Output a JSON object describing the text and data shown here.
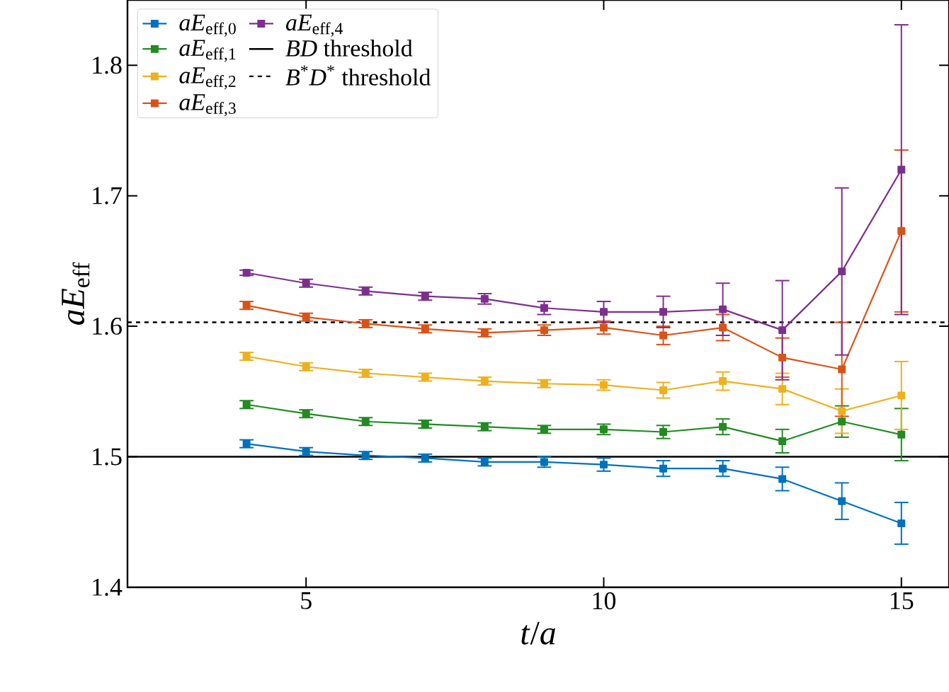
{
  "chart_data": {
    "type": "line",
    "xlabel": "*t*/*a*",
    "ylabel": "*aE*$_{eff}$",
    "xlim": [
      2,
      15.8
    ],
    "ylim": [
      1.4,
      1.85
    ],
    "xticks": [
      5,
      10,
      15
    ],
    "yticks": [
      1.4,
      1.5,
      1.6,
      1.7,
      1.8
    ],
    "grid": false,
    "legend": "top left",
    "marker": "square",
    "line_style": "solid",
    "x": [
      4,
      5,
      6,
      7,
      8,
      9,
      10,
      11,
      12,
      13,
      14,
      15
    ],
    "series": [
      {
        "name": "*aE*$_{eff,0}$",
        "color": "#0072bd",
        "values": [
          1.51,
          1.504,
          1.501,
          1.499,
          1.496,
          1.496,
          1.494,
          1.491,
          1.491,
          1.483,
          1.466,
          1.449
        ],
        "errors": [
          0.003,
          0.003,
          0.003,
          0.003,
          0.003,
          0.004,
          0.005,
          0.006,
          0.006,
          0.009,
          0.014,
          0.016
        ]
      },
      {
        "name": "*aE*$_{eff,1}$",
        "color": "#228b22",
        "values": [
          1.54,
          1.533,
          1.527,
          1.525,
          1.523,
          1.521,
          1.521,
          1.519,
          1.523,
          1.512,
          1.527,
          1.517
        ],
        "errors": [
          0.003,
          0.003,
          0.003,
          0.003,
          0.003,
          0.003,
          0.004,
          0.005,
          0.006,
          0.009,
          0.012,
          0.02
        ]
      },
      {
        "name": "*aE*$_{eff,2}$",
        "color": "#edb120",
        "values": [
          1.577,
          1.569,
          1.564,
          1.561,
          1.558,
          1.556,
          1.555,
          1.551,
          1.558,
          1.552,
          1.535,
          1.547
        ],
        "errors": [
          0.003,
          0.003,
          0.003,
          0.003,
          0.003,
          0.003,
          0.004,
          0.006,
          0.007,
          0.012,
          0.017,
          0.026
        ]
      },
      {
        "name": "*aE*$_{eff,3}$",
        "color": "#d95319",
        "values": [
          1.616,
          1.607,
          1.602,
          1.598,
          1.595,
          1.597,
          1.599,
          1.593,
          1.599,
          1.576,
          1.567,
          1.673
        ],
        "errors": [
          0.003,
          0.003,
          0.003,
          0.003,
          0.003,
          0.004,
          0.005,
          0.007,
          0.01,
          0.015,
          0.036,
          0.062
        ]
      },
      {
        "name": "*aE*$_{eff,4}$",
        "color": "#7e2f8e",
        "values": [
          1.641,
          1.633,
          1.627,
          1.623,
          1.621,
          1.614,
          1.611,
          1.611,
          1.613,
          1.597,
          1.642,
          1.72
        ],
        "errors": [
          0.002,
          0.003,
          0.003,
          0.003,
          0.004,
          0.005,
          0.008,
          0.012,
          0.02,
          0.038,
          0.064,
          0.111
        ]
      }
    ],
    "ref_lines": [
      {
        "axis": "y",
        "value": 1.5,
        "label": "*BD* threshold",
        "color": "#000000",
        "line_style": "solid"
      },
      {
        "axis": "y",
        "value": 1.603,
        "label": "*B*$^{*}$*D*$^{*}$ threshold",
        "color": "#000000",
        "line_style": "dashed"
      }
    ]
  }
}
